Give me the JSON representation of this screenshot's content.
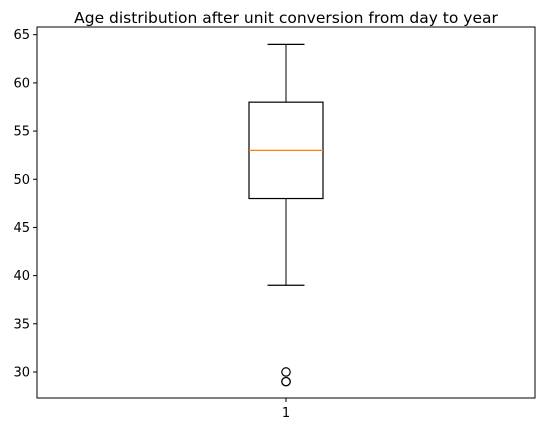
{
  "chart_data": {
    "type": "box",
    "title": "Age distribution after unit conversion from day to year",
    "xlabel": "",
    "ylabel": "",
    "categories": [
      "1"
    ],
    "box": {
      "whisker_low": 39,
      "q1": 48,
      "median": 53,
      "q3": 58,
      "whisker_high": 64,
      "outliers": [
        29,
        29,
        30
      ]
    },
    "ylim": [
      27.3,
      65.8
    ],
    "yticks": [
      30,
      35,
      40,
      45,
      50,
      55,
      60,
      65
    ],
    "grid": false,
    "colors": {
      "box": "#000000",
      "median": "#ff7f0e",
      "whisker": "#000000",
      "outlier": "#000000"
    }
  }
}
